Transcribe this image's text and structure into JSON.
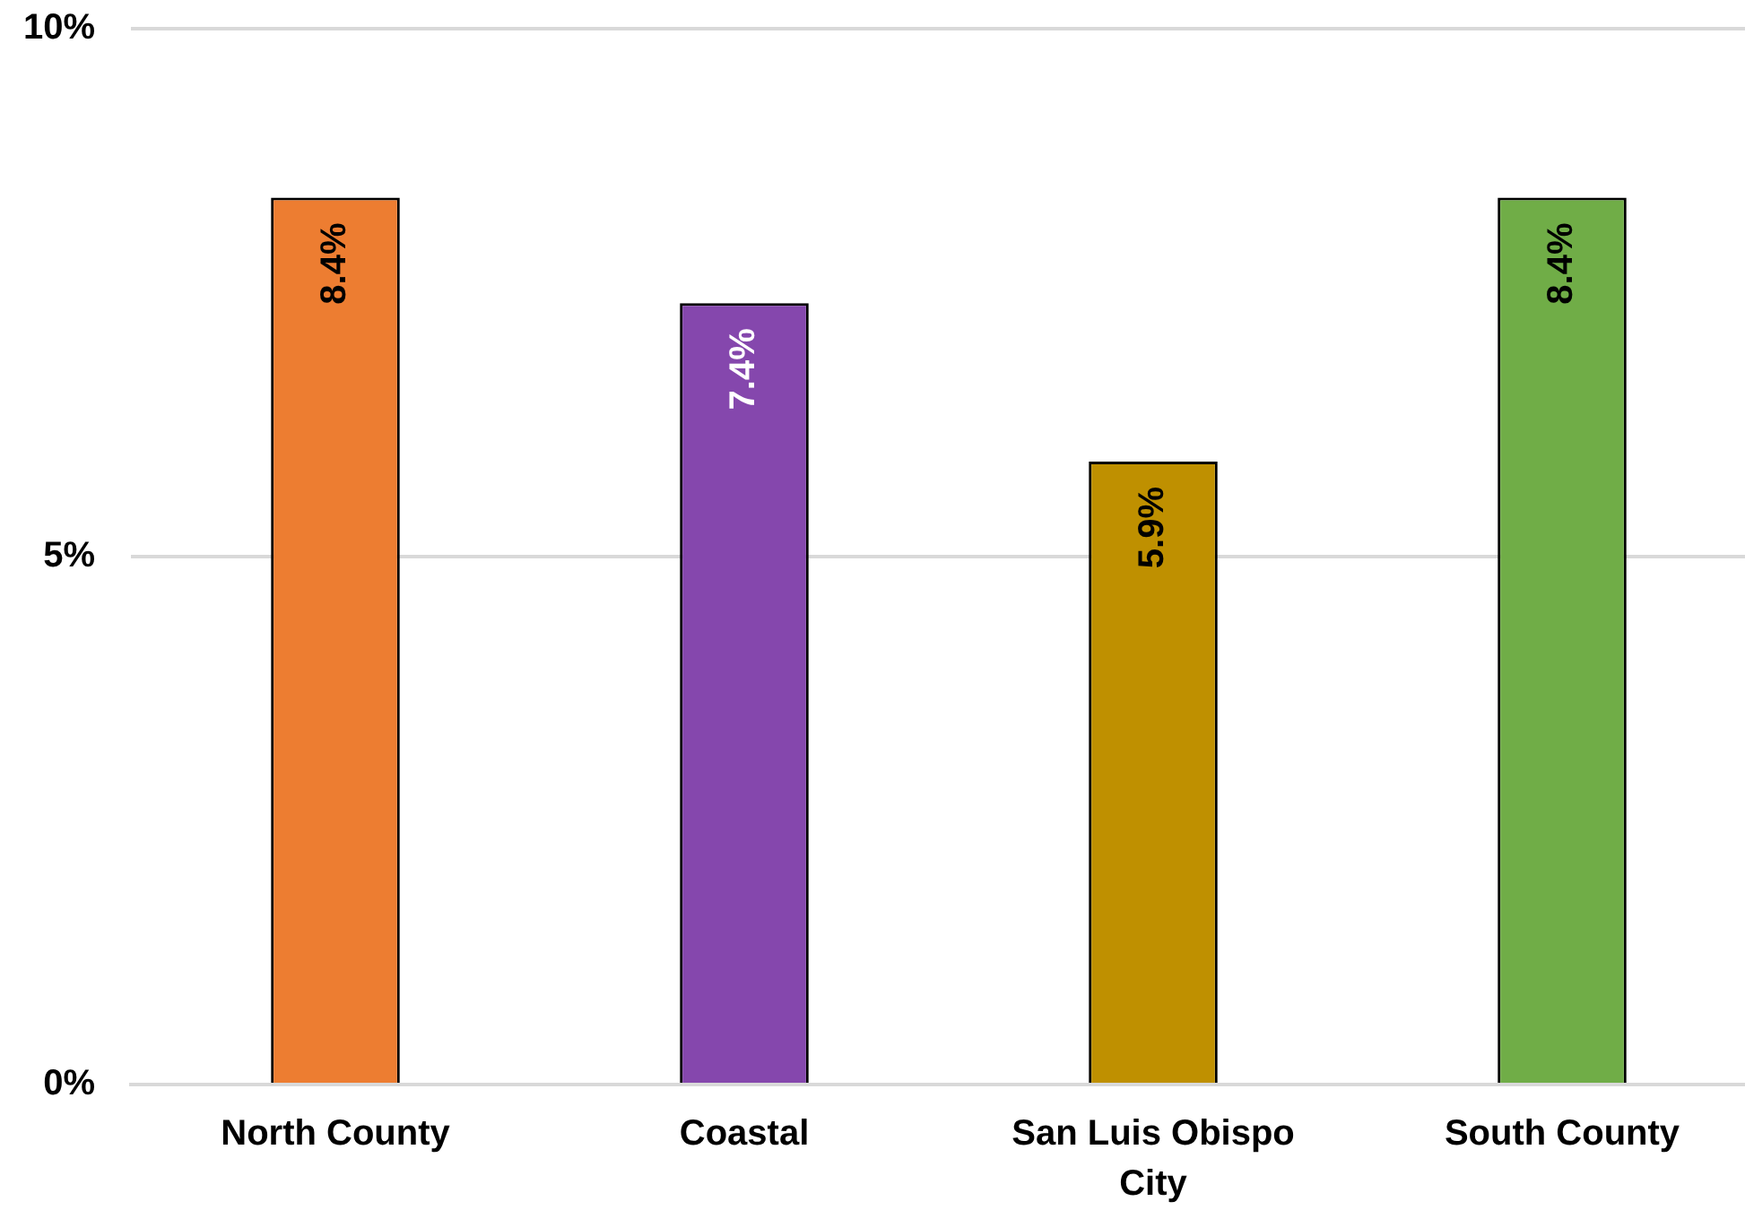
{
  "chart_data": {
    "type": "bar",
    "categories": [
      "North County",
      "Coastal",
      "San Luis Obispo City",
      "South County"
    ],
    "values": [
      8.4,
      7.4,
      5.9,
      8.4
    ],
    "colors": [
      "#ed7d31",
      "#8547ad",
      "#bf9000",
      "#70ad47"
    ],
    "ylim": [
      0,
      10
    ],
    "yticks": [
      {
        "value": 0,
        "label": "0%"
      },
      {
        "value": 5,
        "label": "5%"
      },
      {
        "value": 10,
        "label": "10%"
      }
    ],
    "grid": "y",
    "legend": false,
    "value_labels": [
      "8.4%",
      "7.4%",
      "5.9%",
      "8.4%"
    ]
  }
}
